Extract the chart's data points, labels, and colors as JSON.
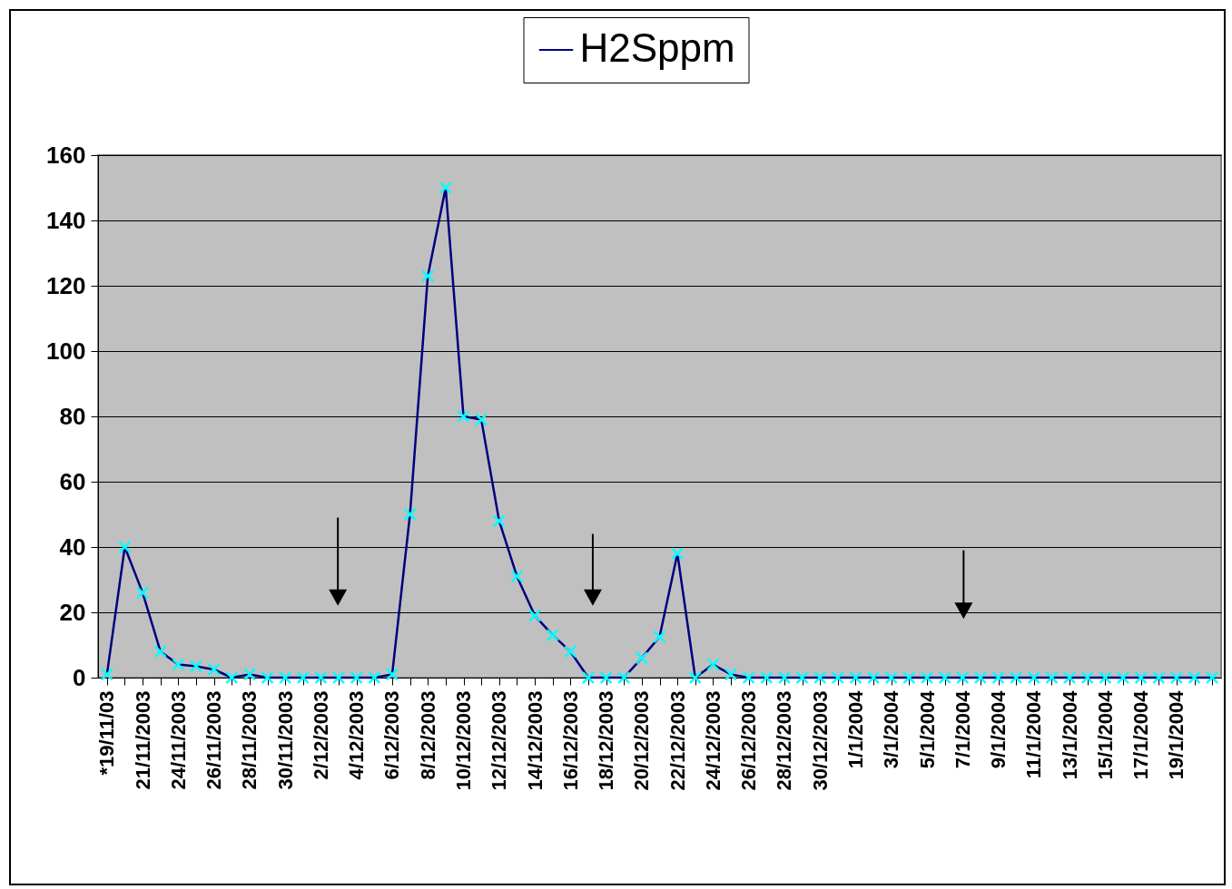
{
  "chart_data": {
    "type": "line",
    "categories": [
      "*19/11/03",
      null,
      "21/11/2003",
      null,
      "24/11/2003",
      null,
      "26/11/2003",
      null,
      "28/11/2003",
      null,
      "30/11/2003",
      null,
      "2/12/2003",
      null,
      "4/12/2003",
      null,
      "6/12/2003",
      null,
      "8/12/2003",
      null,
      "10/12/2003",
      null,
      "12/12/2003",
      null,
      "14/12/2003",
      null,
      "16/12/2003",
      null,
      "18/12/2003",
      null,
      "20/12/2003",
      null,
      "22/12/2003",
      null,
      "24/12/2003",
      null,
      "26/12/2003",
      null,
      "28/12/2003",
      null,
      "30/12/2003",
      null,
      "1/1/2004",
      null,
      "3/1/2004",
      null,
      "5/1/2004",
      null,
      "7/1/2004",
      null,
      "9/1/2004",
      null,
      "11/1/2004",
      null,
      "13/1/2004",
      null,
      "15/1/2004",
      null,
      "17/1/2004",
      null,
      "19/1/2004",
      null,
      null
    ],
    "series": [
      {
        "name": "H2Sppm",
        "color": "#000080",
        "colors": [
          "#00ffff",
          "#00ffff",
          "#00ffff",
          "#00ffff",
          "#00ffff",
          "#00ffff",
          "#00ffff",
          "#00ffff",
          "#00ffff",
          "#00ffff",
          "#00ffff",
          "#00ffff",
          "#00ffff",
          "#00ffff",
          "#00ffff",
          "#00ffff",
          "#00ffff",
          "#00ffff",
          "#00ffff",
          "#00ffff",
          "#00ffff",
          "#00ffff",
          "#00ffff",
          "#00ffff",
          "#00ffff",
          "#00ffff",
          "#00ffff",
          "#00ffff",
          "#00ffff",
          "#00ffff",
          "#00ffff",
          "#00ffff",
          "#00ffff",
          "#00ffff",
          "#00ffff",
          "#00ffff",
          "#00ffff",
          "#00ffff",
          "#00ffff",
          "#00ffff",
          "#00ffff",
          "#00ffff",
          "#00ffff",
          "#00ffff",
          "#00ffff",
          "#00ffff",
          "#00ffff",
          "#00ffff",
          "#00ffff",
          "#00ffff",
          "#00ffff",
          "#00ffff",
          "#00ffff",
          "#00ffff",
          "#00ffff",
          "#00ffff",
          "#00ffff",
          "#00ffff",
          "#00ffff",
          "#00ffff",
          "#00ffff",
          "#00ffff",
          "#00ffff"
        ],
        "values": [
          1,
          40,
          26,
          8,
          4,
          3.5,
          2.5,
          0,
          1,
          0,
          0,
          0,
          0,
          0,
          0,
          0,
          1,
          50,
          123,
          150,
          80,
          79,
          48,
          31,
          19,
          13,
          8,
          0,
          0,
          0,
          6,
          12.5,
          38,
          0,
          4,
          1,
          0,
          0,
          0,
          0,
          0,
          0,
          0,
          0,
          0,
          0,
          0,
          0,
          0,
          0,
          0,
          0,
          0,
          0,
          0,
          0,
          0,
          0,
          0,
          0,
          0,
          0,
          0
        ]
      }
    ],
    "ylim": [
      0,
      160
    ],
    "yticks": [
      0,
      20,
      40,
      60,
      80,
      100,
      120,
      140,
      160
    ],
    "grid": "y",
    "legend": "top",
    "marker": "cross",
    "line_style": "solid"
  }
}
